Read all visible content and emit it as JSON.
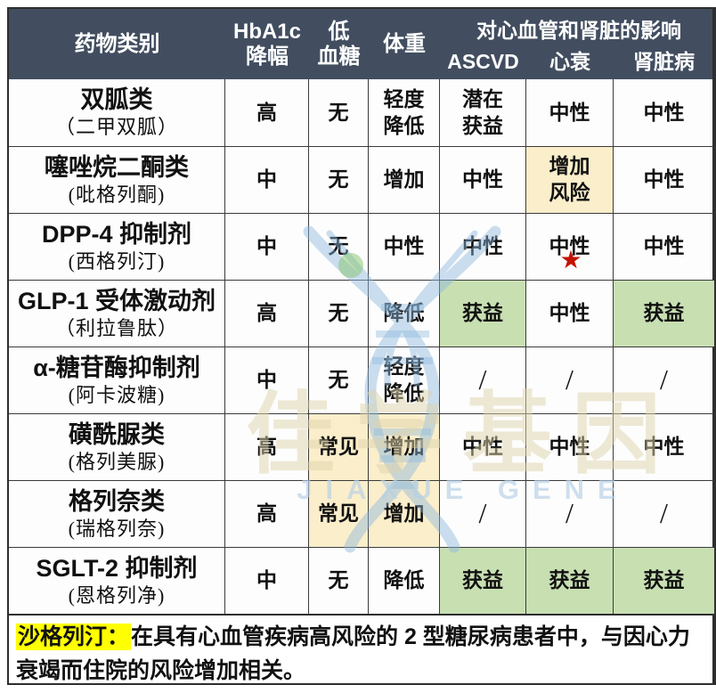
{
  "colors": {
    "header_bg": "#424e60",
    "header_text": "#ffffff",
    "grid_border": "#3b3b3b",
    "warn_bg": "#faeecb",
    "benefit_bg": "#c8dfb2",
    "note_highlight": "#ffff00",
    "star_red": "#c41200",
    "watermark_blue": "#8cb8dd",
    "watermark_green": "#86c46a",
    "watermark_cn_color": "#ddd3ab",
    "watermark_en_color": "#b5cfe6"
  },
  "header": {
    "drug": "药物类别",
    "hba1c": "HbA1c\n降幅",
    "hypo": "低\n血糖",
    "weight": "体重",
    "cv_group": "对心血管和肾脏的影响",
    "ascvd": "ASCVD",
    "hf": "心衰",
    "kidney": "肾脏病"
  },
  "rows": [
    {
      "name": "双胍类",
      "generic": "（二甲双胍）",
      "cells": [
        {
          "t": "高"
        },
        {
          "t": "无"
        },
        {
          "t": "轻度\n降低"
        },
        {
          "t": "潜在\n获益"
        },
        {
          "t": "中性"
        },
        {
          "t": "中性"
        }
      ]
    },
    {
      "name": "噻唑烷二酮类",
      "generic": "(吡格列酮)",
      "cells": [
        {
          "t": "中"
        },
        {
          "t": "无"
        },
        {
          "t": "增加"
        },
        {
          "t": "中性"
        },
        {
          "t": "增加\n风险",
          "bg": "warn"
        },
        {
          "t": "中性"
        }
      ]
    },
    {
      "name": "DPP-4 抑制剂",
      "generic": "(西格列汀)",
      "cells": [
        {
          "t": "中"
        },
        {
          "t": "无"
        },
        {
          "t": "中性"
        },
        {
          "t": "中性"
        },
        {
          "t": "中性",
          "star": true
        },
        {
          "t": "中性"
        }
      ]
    },
    {
      "name": "GLP-1 受体激动剂",
      "generic": "（利拉鲁肽）",
      "cells": [
        {
          "t": "高"
        },
        {
          "t": "无"
        },
        {
          "t": "降低"
        },
        {
          "t": "获益",
          "bg": "benefit"
        },
        {
          "t": "中性"
        },
        {
          "t": "获益",
          "bg": "benefit"
        }
      ]
    },
    {
      "name": "α-糖苷酶抑制剂",
      "generic": "(阿卡波糖)",
      "cells": [
        {
          "t": "中"
        },
        {
          "t": "无"
        },
        {
          "t": "轻度\n降低"
        },
        {
          "t": "/"
        },
        {
          "t": "/"
        },
        {
          "t": "/"
        }
      ]
    },
    {
      "name": "磺酰脲类",
      "generic": "(格列美脲)",
      "cells": [
        {
          "t": "高"
        },
        {
          "t": "常见",
          "bg": "warn"
        },
        {
          "t": "增加",
          "bg": "warn"
        },
        {
          "t": "中性"
        },
        {
          "t": "中性"
        },
        {
          "t": "中性"
        }
      ]
    },
    {
      "name": "格列奈类",
      "generic": "(瑞格列奈)",
      "cells": [
        {
          "t": "高"
        },
        {
          "t": "常见",
          "bg": "warn"
        },
        {
          "t": "增加",
          "bg": "warn"
        },
        {
          "t": "/"
        },
        {
          "t": "/"
        },
        {
          "t": "/"
        }
      ]
    },
    {
      "name": "SGLT-2 抑制剂",
      "generic": "(恩格列净)",
      "cells": [
        {
          "t": "中"
        },
        {
          "t": "无"
        },
        {
          "t": "降低"
        },
        {
          "t": "获益",
          "bg": "benefit"
        },
        {
          "t": "获益",
          "bg": "benefit"
        },
        {
          "t": "获益",
          "bg": "benefit"
        }
      ]
    }
  ],
  "footnote": {
    "highlight": "沙格列汀：",
    "text": "在具有心血管疾病高风险的 2 型糖尿病患者中，与因心力衰竭而住院的风险增加相关。"
  },
  "watermark": {
    "cn": "佳学基因",
    "en": "JIAXUE GENE"
  },
  "chart_data": {
    "type": "table",
    "title": "",
    "columns": [
      "药物类别",
      "HbA1c 降幅",
      "低血糖",
      "体重",
      "ASCVD",
      "心衰",
      "肾脏病"
    ],
    "column_group": {
      "label": "对心血管和肾脏的影响",
      "spans": [
        "ASCVD",
        "心衰",
        "肾脏病"
      ]
    },
    "rows": [
      [
        "双胍类（二甲双胍）",
        "高",
        "无",
        "轻度降低",
        "潜在获益",
        "中性",
        "中性"
      ],
      [
        "噻唑烷二酮类(吡格列酮)",
        "中",
        "无",
        "增加",
        "中性",
        "增加风险",
        "中性"
      ],
      [
        "DPP-4 抑制剂(西格列汀)",
        "中",
        "无",
        "中性",
        "中性",
        "中性★",
        "中性"
      ],
      [
        "GLP-1 受体激动剂（利拉鲁肽）",
        "高",
        "无",
        "降低",
        "获益",
        "中性",
        "获益"
      ],
      [
        "α-糖苷酶抑制剂(阿卡波糖)",
        "中",
        "无",
        "轻度降低",
        "/",
        "/",
        "/"
      ],
      [
        "磺酰脲类(格列美脲)",
        "高",
        "常见",
        "增加",
        "中性",
        "中性",
        "中性"
      ],
      [
        "格列奈类(瑞格列奈)",
        "高",
        "常见",
        "增加",
        "/",
        "/",
        "/"
      ],
      [
        "SGLT-2 抑制剂(恩格列净)",
        "中",
        "无",
        "降低",
        "获益",
        "获益",
        "获益"
      ]
    ],
    "highlighted_warn_cells": [
      [
        1,
        5
      ],
      [
        5,
        2
      ],
      [
        5,
        3
      ],
      [
        6,
        2
      ],
      [
        6,
        3
      ]
    ],
    "highlighted_benefit_cells": [
      [
        3,
        4
      ],
      [
        3,
        6
      ],
      [
        7,
        4
      ],
      [
        7,
        5
      ],
      [
        7,
        6
      ]
    ],
    "footnote": "沙格列汀：在具有心血管疾病高风险的 2 型糖尿病患者中，与因心力衰竭而住院的风险增加相关。"
  }
}
